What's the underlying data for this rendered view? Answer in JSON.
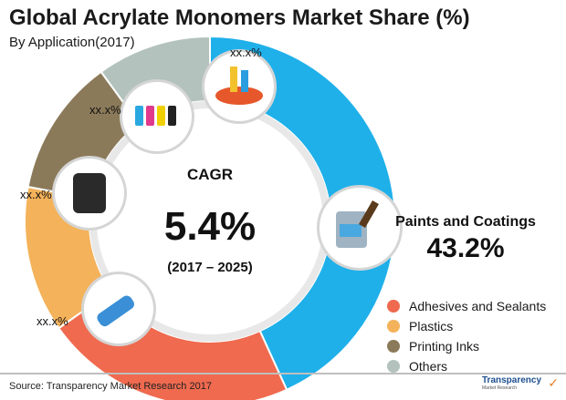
{
  "title": "Global Acrylate Monomers Market Share (%)",
  "subtitle": "By Application(2017)",
  "center": {
    "label": "CAGR",
    "value": "5.4%",
    "period": "(2017 – 2025)"
  },
  "highlight": {
    "label": "Paints and Coatings",
    "value": "43.2%"
  },
  "chart_data": {
    "type": "pie",
    "title": "Global Acrylate Monomers Market Share (%)",
    "subtitle": "By Application(2017)",
    "slices": [
      {
        "name": "Paints and Coatings",
        "value": 43.2,
        "label": "43.2%",
        "color": "#1fb0ea",
        "icon": "paint-bucket-icon"
      },
      {
        "name": "Adhesives and Sealants",
        "value": 22.0,
        "label": "xx.x%",
        "color": "#ef6a4f",
        "icon": "glue-tube-icon"
      },
      {
        "name": "Plastics",
        "value": 12.8,
        "label": "xx.x%",
        "color": "#f4b25a",
        "icon": "water-tank-icon"
      },
      {
        "name": "Printing Inks",
        "value": 12.0,
        "label": "xx.x%",
        "color": "#8b7a5a",
        "icon": "ink-bottles-icon"
      },
      {
        "name": "Others",
        "value": 10.0,
        "label": "xx.x%",
        "color": "#b3c2bc",
        "icon": "paint-pots-icon"
      }
    ],
    "legend_position": "bottom-right"
  },
  "legend": [
    {
      "label": "Adhesives and Sealants",
      "color": "#ef6a4f"
    },
    {
      "label": "Plastics",
      "color": "#f4b25a"
    },
    {
      "label": "Printing Inks",
      "color": "#8b7a5a"
    },
    {
      "label": "Others",
      "color": "#b3c2bc"
    }
  ],
  "source": "Source: Transparency Market Research 2017",
  "logo": {
    "name": "Transparency",
    "sub": "Market Research"
  }
}
